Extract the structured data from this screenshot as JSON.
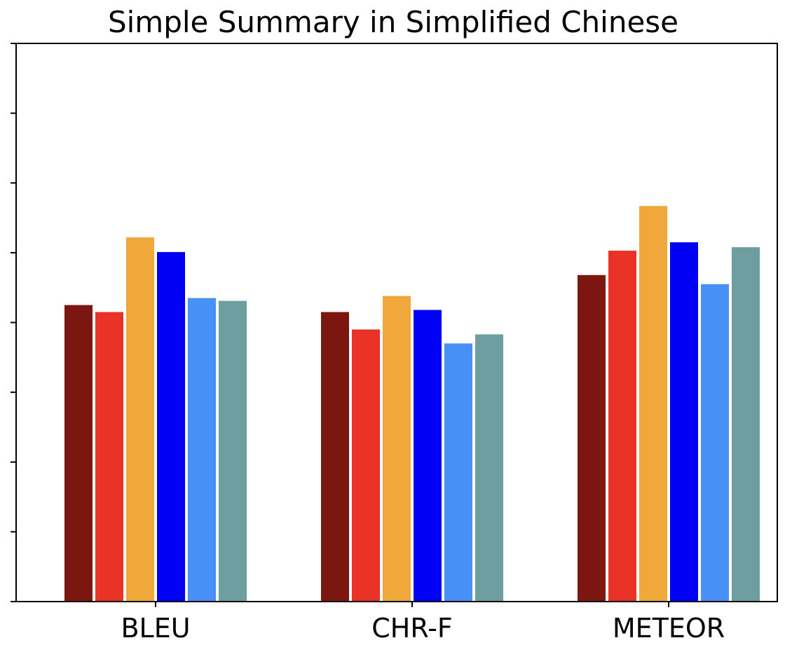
{
  "chart_data": {
    "type": "bar",
    "title": "Simple Summary in Simplified Chinese",
    "xlabel": "",
    "ylabel": "",
    "categories": [
      "BLEU",
      "CHR-F",
      "METEOR"
    ],
    "ylim": [
      0,
      8
    ],
    "y_tick_values": [
      0,
      1,
      2,
      3,
      4,
      5,
      6,
      7,
      8
    ],
    "y_tick_labels_shown": false,
    "grid": false,
    "legend": "none",
    "series": [
      {
        "color": "#7B1710",
        "values": [
          4.25,
          4.15,
          4.68
        ]
      },
      {
        "color": "#E83326",
        "values": [
          4.15,
          3.9,
          5.03
        ]
      },
      {
        "color": "#F0A83D",
        "values": [
          5.22,
          4.38,
          5.67
        ]
      },
      {
        "color": "#0000F5",
        "values": [
          5.01,
          4.18,
          5.15
        ]
      },
      {
        "color": "#4690F7",
        "values": [
          4.35,
          3.7,
          4.55
        ]
      },
      {
        "color": "#6E9FA0",
        "values": [
          4.31,
          3.83,
          5.08
        ]
      }
    ]
  }
}
